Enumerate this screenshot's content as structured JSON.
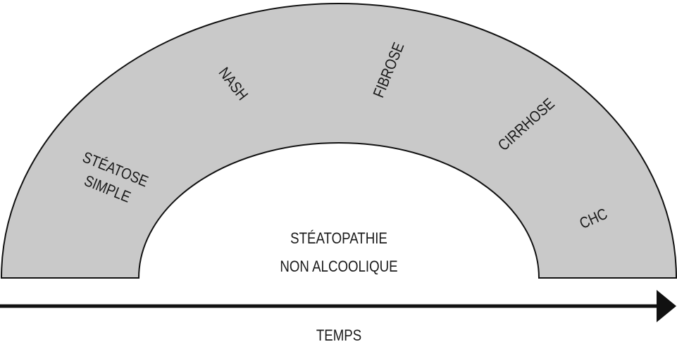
{
  "stages": [
    {
      "lines": [
        "STÉATOSE",
        "SIMPLE"
      ]
    },
    {
      "lines": [
        "NASH"
      ]
    },
    {
      "lines": [
        "FIBROSE"
      ]
    },
    {
      "lines": [
        "CIRRHOSE"
      ]
    },
    {
      "lines": [
        "CHC"
      ]
    }
  ],
  "center": [
    "STÉATOPATHIE",
    "NON ALCOOLIQUE"
  ],
  "axis_label": "TEMPS"
}
